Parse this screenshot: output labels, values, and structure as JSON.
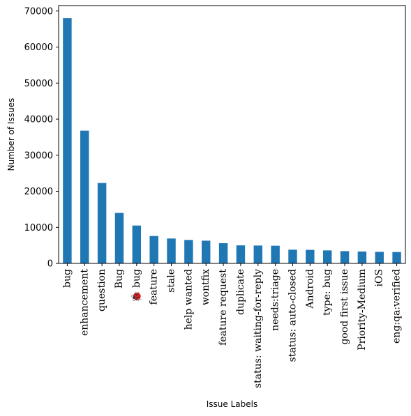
{
  "chart_data": {
    "type": "bar",
    "xlabel": "Issue Labels",
    "ylabel": "Number of Issues",
    "ylim": [
      0,
      71500
    ],
    "yticks": [
      0,
      10000,
      20000,
      30000,
      40000,
      50000,
      60000,
      70000
    ],
    "ytick_labels": [
      "0",
      "10000",
      "20000",
      "30000",
      "40000",
      "50000",
      "60000",
      "70000"
    ],
    "categories": [
      "bug",
      "enhancement",
      "question",
      "Bug",
      "🐞 bug",
      "feature",
      "stale",
      "help wanted",
      "wontfix",
      "feature request",
      "duplicate",
      "status: waiting-for-reply",
      "needs:triage",
      "status: auto-closed",
      "Android",
      "type: bug",
      "good first issue",
      "Priority-Medium",
      "iOS",
      "eng:qa:verified"
    ],
    "values": [
      68000,
      36800,
      22300,
      14000,
      10500,
      7600,
      6900,
      6500,
      6300,
      5600,
      5000,
      4950,
      4900,
      3800,
      3750,
      3600,
      3400,
      3300,
      3200,
      3150
    ],
    "bar_color": "#1f77b4",
    "grid": false,
    "legend": "none"
  }
}
